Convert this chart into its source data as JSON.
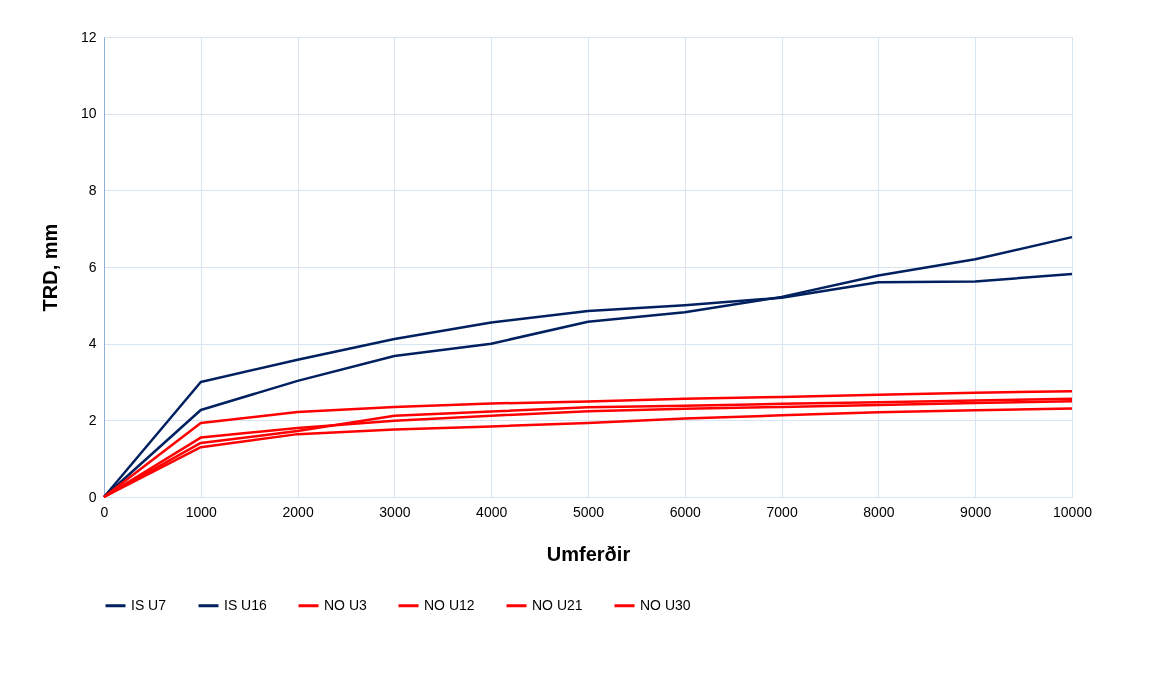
{
  "chart_data": {
    "type": "line",
    "xlabel": "Umferðir",
    "ylabel": "TRD, mm",
    "x": [
      0,
      1000,
      2000,
      3000,
      4000,
      5000,
      6000,
      7000,
      8000,
      9000,
      10000
    ],
    "series": [
      {
        "name": "IS U7",
        "color": "#002060",
        "values": [
          0,
          3.0,
          3.58,
          4.12,
          4.55,
          4.85,
          5.0,
          5.2,
          5.6,
          5.62,
          5.82
        ]
      },
      {
        "name": "IS U16",
        "color": "#002060",
        "values": [
          0,
          2.27,
          3.03,
          3.68,
          4.0,
          4.57,
          4.82,
          5.22,
          5.78,
          6.2,
          6.78
        ]
      },
      {
        "name": "NO U3",
        "color": "#ff0000",
        "values": [
          0,
          1.93,
          2.22,
          2.35,
          2.44,
          2.49,
          2.56,
          2.61,
          2.67,
          2.72,
          2.76
        ]
      },
      {
        "name": "NO U12",
        "color": "#ff0000",
        "values": [
          0,
          1.41,
          1.72,
          2.12,
          2.23,
          2.34,
          2.38,
          2.43,
          2.47,
          2.52,
          2.56
        ]
      },
      {
        "name": "NO U21",
        "color": "#ff0000",
        "values": [
          0,
          1.55,
          1.8,
          1.99,
          2.12,
          2.24,
          2.3,
          2.35,
          2.4,
          2.45,
          2.5
        ]
      },
      {
        "name": "NO U30",
        "color": "#ff0000",
        "values": [
          0,
          1.3,
          1.64,
          1.76,
          1.84,
          1.93,
          2.05,
          2.13,
          2.21,
          2.26,
          2.31
        ]
      }
    ],
    "xlim": [
      0,
      10000
    ],
    "xticks": [
      0,
      1000,
      2000,
      3000,
      4000,
      5000,
      6000,
      7000,
      8000,
      9000,
      10000
    ],
    "ylim": [
      0,
      12
    ],
    "yticks": [
      0,
      2,
      4,
      6,
      8,
      10,
      12
    ],
    "grid": true,
    "legend": "bottom",
    "marker": "none",
    "line_style": "solid"
  }
}
